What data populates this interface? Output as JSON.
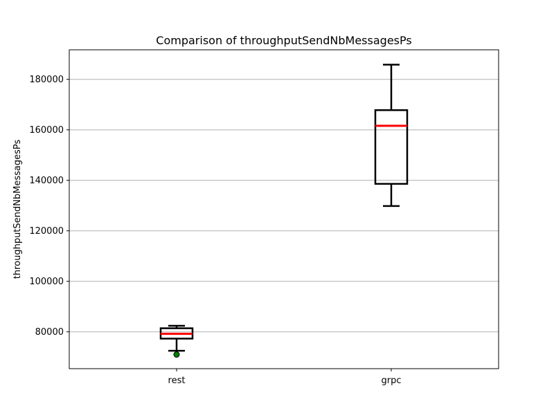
{
  "chart_data": {
    "type": "box",
    "title": "Comparison of throughputSendNbMessagesPs",
    "xlabel": "",
    "ylabel": "throughputSendNbMessagesPs",
    "ylim": [
      65400,
      191700
    ],
    "yticks": [
      80000,
      100000,
      120000,
      140000,
      160000,
      180000
    ],
    "grid": "y",
    "categories": [
      "rest",
      "grpc"
    ],
    "boxes": [
      {
        "category": "rest",
        "whisker_low": 72500,
        "q1": 77300,
        "median": 79200,
        "q3": 81400,
        "whisker_high": 82400,
        "outliers": [
          71000
        ]
      },
      {
        "category": "grpc",
        "whisker_low": 129800,
        "q1": 138600,
        "median": 161600,
        "q3": 167800,
        "whisker_high": 185800,
        "outliers": []
      }
    ],
    "colors": {
      "median": "#ff0000",
      "box": "#000000",
      "outlier": "#008000",
      "grid": "#b0b0b0"
    }
  }
}
